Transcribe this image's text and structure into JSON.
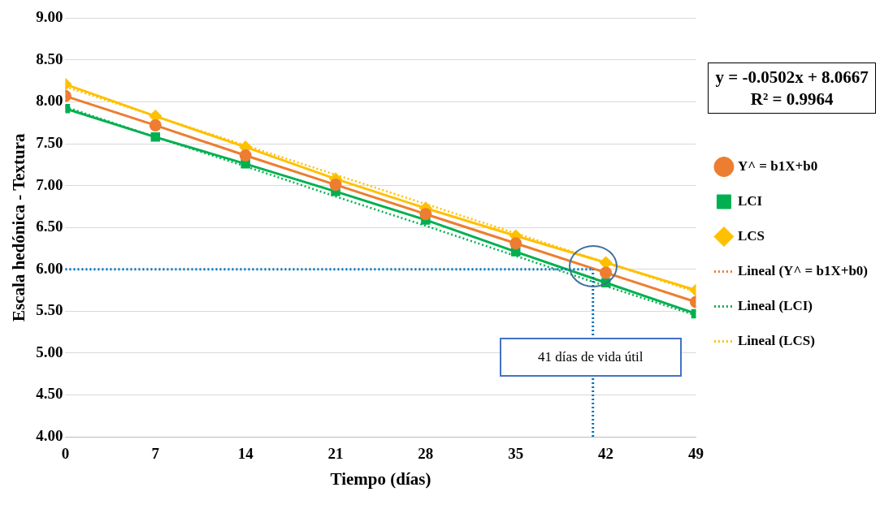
{
  "chart_data": {
    "type": "line",
    "xlabel": "Tiempo (días)",
    "ylabel": "Escala hedónica - Textura",
    "x": [
      0,
      7,
      14,
      21,
      28,
      35,
      42,
      49
    ],
    "xlim": [
      0,
      49
    ],
    "xticks": [
      0,
      7,
      14,
      21,
      28,
      35,
      42,
      49
    ],
    "ylim": [
      4,
      9
    ],
    "yticks": [
      {
        "value": 4,
        "label": "4.00"
      },
      {
        "value": 4.5,
        "label": "4.50"
      },
      {
        "value": 5,
        "label": "5.00"
      },
      {
        "value": 5.5,
        "label": "5.50"
      },
      {
        "value": 6,
        "label": "6.00"
      },
      {
        "value": 6.5,
        "label": "6.50"
      },
      {
        "value": 7,
        "label": "7.00"
      },
      {
        "value": 7.5,
        "label": "7.50"
      },
      {
        "value": 8,
        "label": "8.00"
      },
      {
        "value": 8.5,
        "label": "8.50"
      },
      {
        "value": 9,
        "label": "9.00"
      }
    ],
    "grid": "y",
    "legend": "right",
    "series": [
      {
        "name": "Y^ = b1X+b0",
        "color": "#ed7d31",
        "marker": "circle",
        "line_style": "solid",
        "values": [
          8.07,
          7.72,
          7.36,
          7.01,
          6.66,
          6.31,
          5.96,
          5.61
        ]
      },
      {
        "name": "LCI",
        "color": "#00b050",
        "marker": "square",
        "line_style": "solid",
        "values": [
          7.92,
          7.58,
          7.26,
          6.93,
          6.59,
          6.21,
          5.84,
          5.47
        ]
      },
      {
        "name": "LCS",
        "color": "#ffc000",
        "marker": "diamond",
        "line_style": "solid",
        "values": [
          8.21,
          7.83,
          7.46,
          7.08,
          6.73,
          6.4,
          6.08,
          5.75
        ]
      },
      {
        "name": "Lineal (Y^ = b1X+b0)",
        "color": "#ed7d31",
        "marker": "none",
        "line_style": "dotted",
        "values": [
          null,
          null,
          null,
          null,
          null,
          null,
          null,
          null
        ]
      },
      {
        "name": "Lineal (LCI)",
        "color": "#00b050",
        "marker": "none",
        "line_style": "dotted",
        "values": [
          7.94,
          7.58,
          7.23,
          6.87,
          6.52,
          6.16,
          5.8,
          5.45
        ]
      },
      {
        "name": "Lineal (LCS)",
        "color": "#ffc000",
        "marker": "none",
        "line_style": "dotted",
        "values": [
          8.18,
          7.83,
          7.48,
          7.13,
          6.78,
          6.43,
          6.08,
          5.73
        ]
      }
    ],
    "ref_lines": [
      {
        "axis": "y",
        "value": 6,
        "color": "#0070c0",
        "line_style": "dotted"
      },
      {
        "axis": "x",
        "value": 41,
        "color": "#0070c0",
        "line_style": "dotted",
        "label": "41 días de vida útil"
      }
    ],
    "annotations": [
      "y = -0.0502x + 8.0667\nR² = 0.9964"
    ]
  }
}
